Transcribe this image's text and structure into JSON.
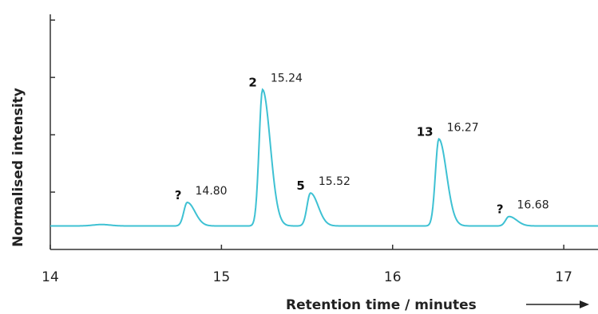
{
  "chart_data": {
    "type": "line",
    "title": "",
    "xlabel": "Retention time / minutes",
    "ylabel": "Normalised intensity",
    "xlim": [
      14,
      17.2
    ],
    "ylim": [
      0,
      1
    ],
    "x_ticks": [
      14,
      15,
      16,
      17
    ],
    "x_tick_labels": [
      "14",
      "15",
      "16",
      "17"
    ],
    "y_tick_count": 4,
    "grid": false,
    "line_color": "#3ec1d3",
    "baseline": 0.1,
    "peaks": [
      {
        "time": 14.8,
        "time_label": "14.80",
        "compound": "?",
        "height": 0.2
      },
      {
        "time": 15.24,
        "time_label": "15.24",
        "compound": "2",
        "height": 0.68
      },
      {
        "time": 15.52,
        "time_label": "15.52",
        "compound": "5",
        "height": 0.24
      },
      {
        "time": 16.27,
        "time_label": "16.27",
        "compound": "13",
        "height": 0.47
      },
      {
        "time": 16.68,
        "time_label": "16.68",
        "compound": "?",
        "height": 0.14
      }
    ]
  }
}
